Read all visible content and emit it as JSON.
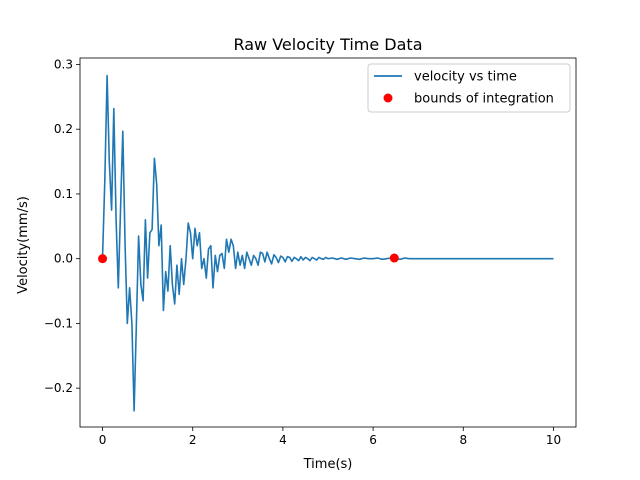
{
  "chart_data": {
    "type": "line",
    "title": "Raw Velocity Time Data",
    "xlabel": "Time(s)",
    "ylabel": "Velocity(mm/s)",
    "xlim": [
      -0.5,
      10.5
    ],
    "ylim": [
      -0.26,
      0.31
    ],
    "xticks": [
      0,
      2,
      4,
      6,
      8,
      10
    ],
    "xtick_labels": [
      "0",
      "2",
      "4",
      "6",
      "8",
      "10"
    ],
    "yticks": [
      -0.2,
      -0.1,
      0.0,
      0.1,
      0.2,
      0.3
    ],
    "ytick_labels": [
      "−0.2",
      "−0.1",
      "0.0",
      "0.1",
      "0.2",
      "0.3"
    ],
    "grid": false,
    "legend_position": "top-right",
    "series": [
      {
        "name": "velocity vs time",
        "kind": "line",
        "color": "#1f77b4",
        "x": [
          0,
          0.05,
          0.1,
          0.15,
          0.2,
          0.25,
          0.3,
          0.35,
          0.4,
          0.45,
          0.5,
          0.55,
          0.6,
          0.65,
          0.7,
          0.75,
          0.8,
          0.85,
          0.9,
          0.95,
          1.0,
          1.05,
          1.1,
          1.15,
          1.2,
          1.25,
          1.3,
          1.35,
          1.4,
          1.45,
          1.5,
          1.55,
          1.6,
          1.65,
          1.7,
          1.75,
          1.8,
          1.85,
          1.9,
          1.95,
          2.0,
          2.05,
          2.1,
          2.15,
          2.2,
          2.25,
          2.3,
          2.35,
          2.4,
          2.45,
          2.5,
          2.55,
          2.6,
          2.65,
          2.7,
          2.75,
          2.8,
          2.85,
          2.9,
          2.95,
          3.0,
          3.05,
          3.1,
          3.15,
          3.2,
          3.25,
          3.3,
          3.35,
          3.4,
          3.45,
          3.5,
          3.55,
          3.6,
          3.65,
          3.7,
          3.75,
          3.8,
          3.85,
          3.9,
          3.95,
          4.0,
          4.05,
          4.1,
          4.15,
          4.2,
          4.25,
          4.3,
          4.35,
          4.4,
          4.45,
          4.5,
          4.55,
          4.6,
          4.65,
          4.7,
          4.75,
          4.8,
          4.85,
          4.9,
          4.95,
          5.0,
          5.1,
          5.2,
          5.3,
          5.4,
          5.5,
          5.6,
          5.7,
          5.8,
          5.9,
          6.0,
          6.1,
          6.2,
          6.3,
          6.4,
          6.5,
          6.6,
          6.7,
          6.8,
          6.9,
          7.0,
          7.2,
          7.4,
          7.6,
          7.8,
          8.0,
          8.5,
          9.0,
          9.5,
          10.0
        ],
        "y": [
          0.0,
          0.12,
          0.283,
          0.15,
          0.075,
          0.232,
          0.06,
          -0.045,
          0.08,
          0.197,
          0.02,
          -0.1,
          -0.045,
          -0.1,
          -0.235,
          -0.1,
          0.035,
          -0.04,
          -0.065,
          0.06,
          -0.03,
          0.04,
          0.045,
          0.155,
          0.115,
          0.02,
          0.052,
          -0.08,
          -0.02,
          -0.05,
          0.02,
          -0.04,
          -0.07,
          -0.01,
          -0.055,
          0.0,
          -0.04,
          0.0,
          0.055,
          0.04,
          0.0,
          0.047,
          0.02,
          0.04,
          -0.015,
          0.0,
          -0.03,
          0.015,
          0.02,
          -0.045,
          0.005,
          -0.02,
          0.005,
          0.008,
          -0.015,
          0.03,
          0.01,
          0.03,
          0.02,
          -0.015,
          0.01,
          -0.01,
          0.005,
          -0.015,
          0.01,
          0.0,
          -0.01,
          0.005,
          0.0,
          -0.01,
          0.01,
          0.008,
          -0.005,
          0.01,
          0.0,
          -0.008,
          0.006,
          0.002,
          -0.006,
          0.004,
          0.002,
          -0.005,
          0.003,
          0.002,
          -0.004,
          0.002,
          0.0,
          -0.003,
          0.003,
          -0.002,
          0.002,
          0.0,
          -0.003,
          0.002,
          0.0,
          -0.002,
          0.002,
          0.0,
          -0.001,
          0.002,
          0.0,
          0.001,
          -0.001,
          0.001,
          -0.001,
          0.001,
          0.0,
          -0.001,
          0.001,
          0.0,
          0.0,
          0.001,
          -0.001,
          0.0,
          0.001,
          0.0,
          -0.001,
          0.001,
          0.0,
          0.0,
          0.0,
          0.0,
          0.0,
          0.0,
          0.0,
          0.0,
          0.0,
          0.0,
          0.0,
          0.0
        ]
      },
      {
        "name": "bounds of integration",
        "kind": "scatter",
        "color": "#ff0000",
        "x": [
          0.0,
          6.47
        ],
        "y": [
          0.0,
          0.001
        ]
      }
    ]
  }
}
